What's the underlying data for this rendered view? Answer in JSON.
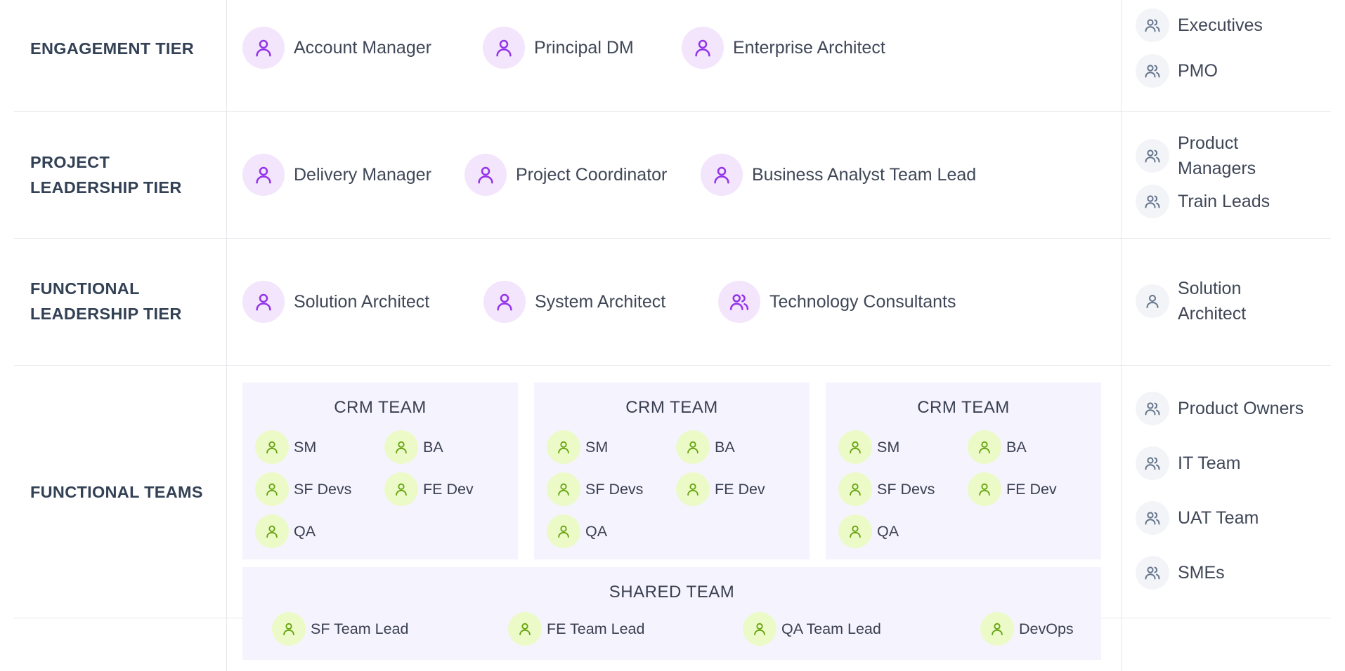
{
  "colors": {
    "leadership_icon": "#9333ea",
    "leadership_icon_bg": "#f3e5fc",
    "team_icon": "#65a30d",
    "team_icon_bg": "#ecfac8",
    "side_icon": "#64748b",
    "side_icon_bg": "#f2f4f7",
    "team_box_bg": "#f5f3fe",
    "divider": "#e5e7eb"
  },
  "tiers": {
    "engagement": {
      "label": "ENGAGEMENT TIER",
      "roles": [
        {
          "label": "Account Manager",
          "icon": "user-icon"
        },
        {
          "label": "Principal DM",
          "icon": "user-icon"
        },
        {
          "label": "Enterprise Architect",
          "icon": "user-icon"
        }
      ],
      "stakeholders": [
        {
          "label": "Executives",
          "icon": "users-icon"
        },
        {
          "label": "PMO",
          "icon": "users-icon"
        }
      ]
    },
    "project_leadership": {
      "label_line1": "PROJECT",
      "label_line2": "LEADERSHIP TIER",
      "roles": [
        {
          "label": "Delivery Manager",
          "icon": "user-icon"
        },
        {
          "label": "Project Coordinator",
          "icon": "user-icon"
        },
        {
          "label": "Business Analyst Team Lead",
          "icon": "user-icon"
        }
      ],
      "stakeholders": [
        {
          "label_line1": "Product",
          "label_line2": "Managers",
          "icon": "users-icon"
        },
        {
          "label": "Train Leads",
          "icon": "users-icon"
        }
      ]
    },
    "functional_leadership": {
      "label_line1": "FUNCTIONAL",
      "label_line2": "LEADERSHIP TIER",
      "roles": [
        {
          "label": "Solution Architect",
          "icon": "user-icon"
        },
        {
          "label": "System Architect",
          "icon": "user-icon"
        },
        {
          "label": "Technology Consultants",
          "icon": "users-icon"
        }
      ],
      "stakeholders": [
        {
          "label_line1": "Solution",
          "label_line2": "Architect",
          "icon": "user-icon"
        }
      ]
    },
    "functional_teams": {
      "label": "FUNCTIONAL TEAMS",
      "teams": [
        {
          "title": "CRM TEAM",
          "members": [
            "SM",
            "BA",
            "SF Devs",
            "FE Dev",
            "QA"
          ]
        },
        {
          "title": "CRM TEAM",
          "members": [
            "SM",
            "BA",
            "SF Devs",
            "FE Dev",
            "QA"
          ]
        },
        {
          "title": "CRM TEAM",
          "members": [
            "SM",
            "BA",
            "SF Devs",
            "FE Dev",
            "QA"
          ]
        }
      ],
      "shared_team": {
        "title": "SHARED TEAM",
        "members": [
          "SF Team Lead",
          "FE Team Lead",
          "QA Team Lead",
          "DevOps"
        ]
      },
      "stakeholders": [
        {
          "label": "Product Owners",
          "icon": "users-icon"
        },
        {
          "label": "IT Team",
          "icon": "users-icon"
        },
        {
          "label": "UAT Team",
          "icon": "users-icon"
        },
        {
          "label": "SMEs",
          "icon": "users-icon"
        }
      ]
    }
  }
}
